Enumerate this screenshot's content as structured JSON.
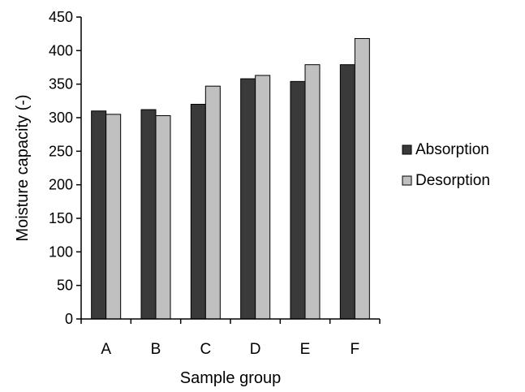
{
  "chart_data": {
    "type": "bar",
    "xlabel": "Sample group",
    "ylabel": "Moisture capacity (-)",
    "ylim": [
      0,
      450
    ],
    "yticks": [
      0,
      50,
      100,
      150,
      200,
      250,
      300,
      350,
      400,
      450
    ],
    "categories": [
      "A",
      "B",
      "C",
      "D",
      "E",
      "F"
    ],
    "series": [
      {
        "name": "Absorption",
        "color": "#3a3a3a",
        "values": [
          310,
          312,
          320,
          358,
          354,
          379
        ]
      },
      {
        "name": "Desorption",
        "color": "#c0c0c0",
        "values": [
          305,
          303,
          347,
          363,
          379,
          418
        ]
      }
    ],
    "grid": false,
    "legend": "right"
  }
}
